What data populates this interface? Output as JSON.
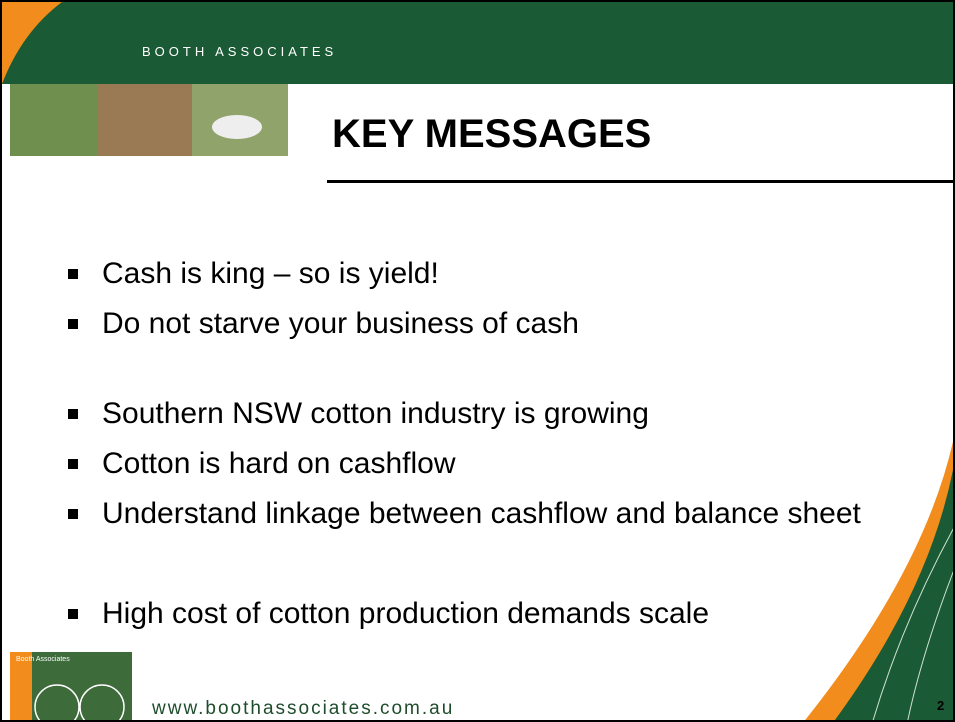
{
  "header": {
    "brand": "BOOTH ASSOCIATES"
  },
  "title": "KEY MESSAGES",
  "bullets": [
    "Cash is king – so is yield!",
    "Do not starve your business of cash",
    "Southern NSW cotton industry is growing",
    "Cotton is hard on cashflow",
    "Understand linkage between cashflow and balance sheet",
    "High cost of cotton production demands scale"
  ],
  "logo": {
    "label": "Booth Associates"
  },
  "footer": {
    "url": "www.boothassociates.com.au",
    "page": "2"
  }
}
